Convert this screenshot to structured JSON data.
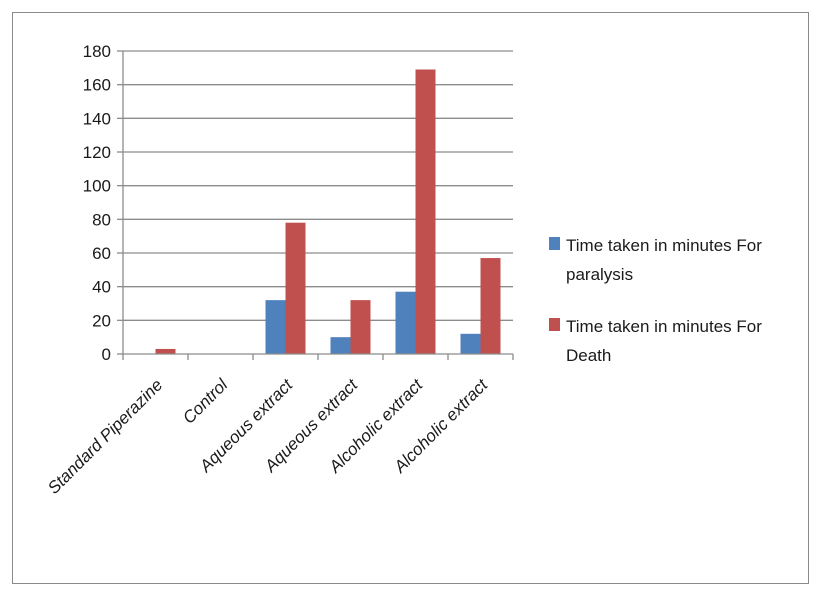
{
  "chart_data": {
    "type": "bar",
    "title": "",
    "xlabel": "",
    "ylabel": "",
    "ylim": [
      0,
      180
    ],
    "yticks": [
      0,
      20,
      40,
      60,
      80,
      100,
      120,
      140,
      160,
      180
    ],
    "grid": true,
    "legend_position": "right",
    "categories": [
      "Standard Piperazine",
      "Control",
      "Aqueous extract",
      "Aqueous extract",
      "Alcoholic extract",
      "Alcoholic extract"
    ],
    "series": [
      {
        "name_lines": [
          "Time taken in minutes For",
          "paralysis"
        ],
        "color": "#4f81bd",
        "values": [
          0,
          0,
          32,
          10,
          37,
          12
        ]
      },
      {
        "name_lines": [
          "Time taken in minutes For",
          "Death"
        ],
        "color": "#c0504d",
        "values": [
          3,
          0,
          78,
          32,
          169,
          57
        ]
      }
    ]
  }
}
